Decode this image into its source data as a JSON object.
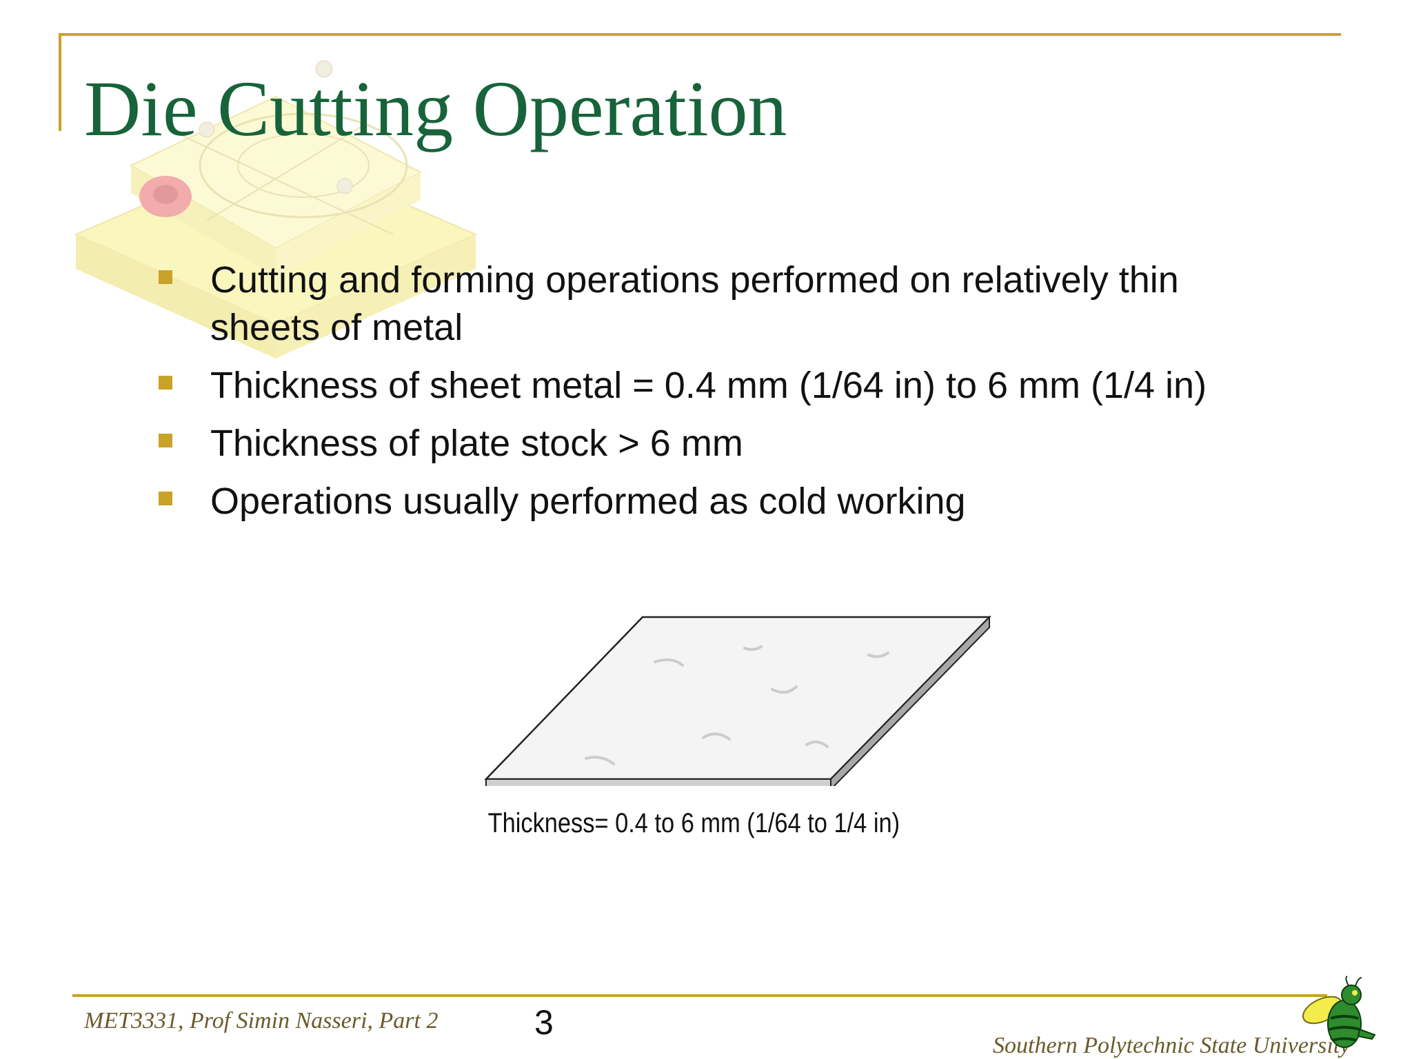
{
  "slide": {
    "title": "Die Cutting Operation",
    "bullets": [
      "Cutting and forming operations performed on relatively thin sheets of metal",
      "Thickness of sheet metal = 0.4 mm (1/64 in) to 6 mm (1/4 in)",
      "Thickness of plate stock > 6 mm",
      "Operations usually performed as cold working"
    ],
    "figure_caption": "Thickness= 0.4 to 6 mm (1/64 to 1/4 in)",
    "page_number": "3"
  },
  "footer": {
    "course": "MET3331, Prof Simin Nasseri, Part 2",
    "university": "Southern Polytechnic State University"
  },
  "colors": {
    "title": "#17633a",
    "accent": "#c9a227",
    "footer_text": "#6b5a2a"
  },
  "icons": [
    "die-set-watermark-icon",
    "sheet-metal-icon",
    "yellow-jacket-mascot-icon"
  ]
}
